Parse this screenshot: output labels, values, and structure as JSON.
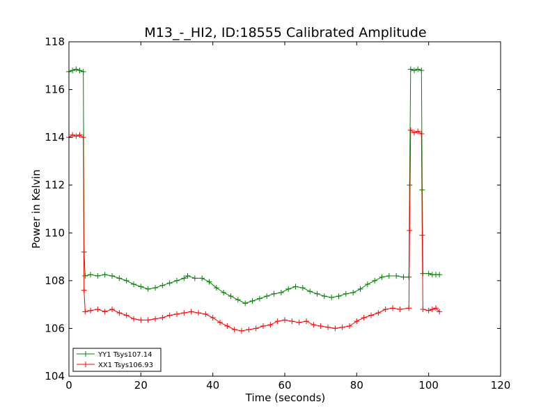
{
  "chart_data": {
    "type": "line",
    "title": "M13_-_HI2, ID:18555 Calibrated Amplitude",
    "xlabel": "Time (seconds)",
    "ylabel": "Power in Kelvin",
    "xlim": [
      0,
      120
    ],
    "ylim": [
      104,
      118
    ],
    "xticks": [
      0,
      20,
      40,
      60,
      80,
      100,
      120
    ],
    "yticks": [
      104,
      106,
      108,
      110,
      112,
      114,
      116,
      118
    ],
    "grid": false,
    "legend_position": "lower-left",
    "marker": "plus",
    "series": [
      {
        "name": "YY1 Tsys107.14",
        "color": "#008000",
        "points": [
          [
            0,
            116.75
          ],
          [
            1,
            116.8
          ],
          [
            2,
            116.85
          ],
          [
            3,
            116.8
          ],
          [
            4,
            116.75
          ],
          [
            4.2,
            109.2
          ],
          [
            4.5,
            108.2
          ],
          [
            6,
            108.25
          ],
          [
            8,
            108.2
          ],
          [
            10,
            108.25
          ],
          [
            12,
            108.2
          ],
          [
            14,
            108.1
          ],
          [
            16,
            108.0
          ],
          [
            18,
            107.85
          ],
          [
            20,
            107.75
          ],
          [
            22,
            107.65
          ],
          [
            24,
            107.7
          ],
          [
            26,
            107.8
          ],
          [
            28,
            107.9
          ],
          [
            30,
            108.0
          ],
          [
            32,
            108.1
          ],
          [
            33,
            108.2
          ],
          [
            35,
            108.1
          ],
          [
            37,
            108.1
          ],
          [
            39,
            107.95
          ],
          [
            41,
            107.7
          ],
          [
            43,
            107.5
          ],
          [
            45,
            107.35
          ],
          [
            47,
            107.2
          ],
          [
            49,
            107.05
          ],
          [
            51,
            107.15
          ],
          [
            53,
            107.25
          ],
          [
            55,
            107.35
          ],
          [
            57,
            107.45
          ],
          [
            59,
            107.5
          ],
          [
            61,
            107.65
          ],
          [
            63,
            107.75
          ],
          [
            65,
            107.7
          ],
          [
            67,
            107.55
          ],
          [
            69,
            107.45
          ],
          [
            71,
            107.35
          ],
          [
            73,
            107.3
          ],
          [
            75,
            107.35
          ],
          [
            77,
            107.45
          ],
          [
            79,
            107.5
          ],
          [
            81,
            107.65
          ],
          [
            83,
            107.85
          ],
          [
            85,
            108.0
          ],
          [
            87,
            108.15
          ],
          [
            89,
            108.2
          ],
          [
            91,
            108.2
          ],
          [
            93,
            108.15
          ],
          [
            94.5,
            108.15
          ],
          [
            94.7,
            112.0
          ],
          [
            95,
            116.85
          ],
          [
            96,
            116.8
          ],
          [
            97,
            116.85
          ],
          [
            98,
            116.8
          ],
          [
            98.2,
            111.8
          ],
          [
            98.4,
            108.3
          ],
          [
            100,
            108.3
          ],
          [
            101,
            108.25
          ],
          [
            102,
            108.25
          ],
          [
            103,
            108.25
          ]
        ]
      },
      {
        "name": "XX1 Tsys106.93",
        "color": "#ff0000",
        "points": [
          [
            0,
            114.0
          ],
          [
            1,
            114.1
          ],
          [
            2,
            114.05
          ],
          [
            3,
            114.1
          ],
          [
            4,
            114.0
          ],
          [
            4.2,
            107.6
          ],
          [
            4.5,
            106.7
          ],
          [
            6,
            106.75
          ],
          [
            8,
            106.8
          ],
          [
            10,
            106.7
          ],
          [
            12,
            106.8
          ],
          [
            14,
            106.65
          ],
          [
            16,
            106.55
          ],
          [
            18,
            106.4
          ],
          [
            20,
            106.35
          ],
          [
            22,
            106.35
          ],
          [
            24,
            106.4
          ],
          [
            26,
            106.45
          ],
          [
            28,
            106.55
          ],
          [
            30,
            106.6
          ],
          [
            32,
            106.65
          ],
          [
            34,
            106.7
          ],
          [
            36,
            106.65
          ],
          [
            38,
            106.6
          ],
          [
            40,
            106.45
          ],
          [
            42,
            106.25
          ],
          [
            44,
            106.1
          ],
          [
            46,
            105.95
          ],
          [
            48,
            105.9
          ],
          [
            50,
            105.95
          ],
          [
            52,
            106.0
          ],
          [
            54,
            106.1
          ],
          [
            56,
            106.15
          ],
          [
            58,
            106.3
          ],
          [
            60,
            106.35
          ],
          [
            62,
            106.3
          ],
          [
            64,
            106.25
          ],
          [
            66,
            106.3
          ],
          [
            68,
            106.15
          ],
          [
            70,
            106.1
          ],
          [
            72,
            106.05
          ],
          [
            74,
            106.0
          ],
          [
            76,
            106.05
          ],
          [
            78,
            106.1
          ],
          [
            80,
            106.3
          ],
          [
            82,
            106.45
          ],
          [
            84,
            106.55
          ],
          [
            86,
            106.65
          ],
          [
            88,
            106.8
          ],
          [
            90,
            106.85
          ],
          [
            92,
            106.8
          ],
          [
            94.5,
            106.85
          ],
          [
            94.7,
            110.1
          ],
          [
            95,
            114.3
          ],
          [
            96,
            114.2
          ],
          [
            97,
            114.25
          ],
          [
            98,
            114.15
          ],
          [
            98.2,
            109.9
          ],
          [
            98.4,
            106.8
          ],
          [
            100,
            106.75
          ],
          [
            101,
            106.8
          ],
          [
            102,
            106.85
          ],
          [
            103,
            106.7
          ]
        ]
      }
    ]
  }
}
